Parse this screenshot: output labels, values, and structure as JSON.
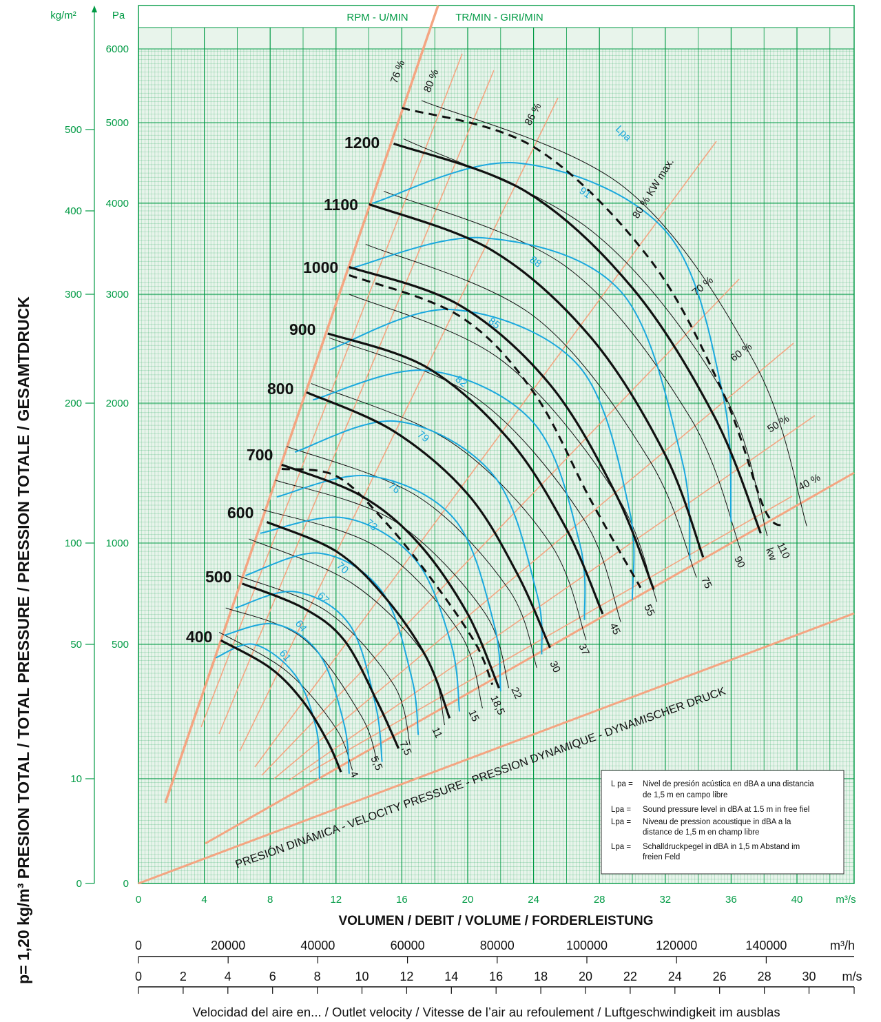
{
  "chart_data": {
    "type": "line",
    "title": "",
    "y_axis_title": "p= 1,20 kg/m³ PRESION TOTAL / TOTAL PRESSURE / PRESSION TOTALE / GESAMTDRUCK",
    "x_axis_title": "VOLUMEN / DEBIT / VOLUME / FORDERLEISTUNG",
    "velocity_axis_title": "Velocidad del aire en... / Outlet velocity / Vitesse de l’air au refoulement / Luftgeschwindigkeit im ausblas",
    "top_labels": [
      "RPM - U/MIN",
      "TR/MIN - GIRI/MIN"
    ],
    "unit_labels": {
      "kgm2": "kg/m²",
      "pa": "Pa",
      "m3s": "m³/s",
      "m3h": "m³/h",
      "ms": "m/s",
      "kw": "kw",
      "lpa": "Lpa"
    },
    "x_ticks_m3s": [
      "0",
      "4",
      "8",
      "12",
      "16",
      "20",
      "24",
      "28",
      "32",
      "36",
      "40"
    ],
    "x_range_m3s": [
      0,
      43.5
    ],
    "y_ticks_pa": [
      "0",
      "500",
      "1000",
      "2000",
      "3000",
      "4000",
      "5000",
      "6000"
    ],
    "y_ticks_kgm2": [
      "0",
      "10",
      "50",
      "100",
      "200",
      "300",
      "400",
      "500"
    ],
    "m3h_ticks": [
      "0",
      "20000",
      "40000",
      "60000",
      "80000",
      "100000",
      "120000",
      "140000"
    ],
    "ms_ticks": [
      "0",
      "2",
      "4",
      "6",
      "8",
      "10",
      "12",
      "14",
      "16",
      "18",
      "20",
      "22",
      "24",
      "26",
      "28",
      "30"
    ],
    "rpm_curves": [
      {
        "rpm": "400",
        "points": [
          [
            5.0,
            520
          ],
          [
            8.0,
            430
          ],
          [
            10.0,
            330
          ],
          [
            11.5,
            210
          ],
          [
            12.3,
            120
          ]
        ]
      },
      {
        "rpm": "500",
        "points": [
          [
            6.3,
            800
          ],
          [
            10.0,
            680
          ],
          [
            12.5,
            520
          ],
          [
            14.5,
            330
          ],
          [
            15.8,
            190
          ]
        ]
      },
      {
        "rpm": "600",
        "points": [
          [
            7.8,
            1150
          ],
          [
            12.0,
            960
          ],
          [
            15.0,
            730
          ],
          [
            17.5,
            460
          ],
          [
            18.9,
            280
          ]
        ]
      },
      {
        "rpm": "700",
        "points": [
          [
            8.7,
            1560
          ],
          [
            13.5,
            1340
          ],
          [
            17.0,
            1000
          ],
          [
            20.0,
            650
          ],
          [
            21.9,
            370
          ]
        ]
      },
      {
        "rpm": "800",
        "points": [
          [
            10.2,
            2100
          ],
          [
            15.5,
            1800
          ],
          [
            20.0,
            1350
          ],
          [
            23.0,
            850
          ],
          [
            25.0,
            490
          ]
        ]
      },
      {
        "rpm": "900",
        "points": [
          [
            11.5,
            2640
          ],
          [
            17.5,
            2330
          ],
          [
            22.5,
            1740
          ],
          [
            26.0,
            1100
          ],
          [
            28.2,
            650
          ]
        ]
      },
      {
        "rpm": "1000",
        "points": [
          [
            12.8,
            3300
          ],
          [
            19.5,
            2900
          ],
          [
            25.0,
            2170
          ],
          [
            29.0,
            1350
          ],
          [
            31.3,
            770
          ]
        ]
      },
      {
        "rpm": "1100",
        "points": [
          [
            14.0,
            3990
          ],
          [
            21.5,
            3480
          ],
          [
            27.5,
            2600
          ],
          [
            32.0,
            1630
          ],
          [
            34.3,
            930
          ]
        ]
      },
      {
        "rpm": "1200",
        "points": [
          [
            15.5,
            4740
          ],
          [
            23.5,
            4150
          ],
          [
            30.0,
            3070
          ],
          [
            35.0,
            1900
          ],
          [
            37.8,
            1070
          ]
        ]
      }
    ],
    "kw_curve_labels": [
      "4",
      "5,5",
      "7,5",
      "11",
      "15",
      "18,5",
      "22",
      "30",
      "37",
      "45",
      "55",
      "75",
      "90",
      "110"
    ],
    "efficiency_lines": [
      "76 %",
      "80 %",
      "86 %",
      "80 % KW max.",
      "70 %",
      "60 %",
      "50 %",
      "40 %"
    ],
    "lpa_curves": [
      {
        "label": "61",
        "points": [
          [
            4.7,
            460
          ],
          [
            7.0,
            500
          ],
          [
            9.5,
            410
          ],
          [
            10.8,
            250
          ],
          [
            11.0,
            100
          ]
        ]
      },
      {
        "label": "64",
        "points": [
          [
            5.2,
            545
          ],
          [
            8.3,
            600
          ],
          [
            11.0,
            470
          ],
          [
            12.5,
            260
          ],
          [
            12.8,
            115
          ]
        ]
      },
      {
        "label": "67",
        "points": [
          [
            5.9,
            680
          ],
          [
            9.5,
            760
          ],
          [
            12.8,
            600
          ],
          [
            14.4,
            320
          ],
          [
            14.8,
            150
          ]
        ]
      },
      {
        "label": "70",
        "points": [
          [
            6.5,
            840
          ],
          [
            11.0,
            950
          ],
          [
            14.8,
            760
          ],
          [
            16.6,
            400
          ],
          [
            17.0,
            230
          ]
        ]
      },
      {
        "label": "73",
        "points": [
          [
            7.4,
            1070
          ],
          [
            12.5,
            1180
          ],
          [
            16.8,
            920
          ],
          [
            19.0,
            500
          ],
          [
            19.5,
            300
          ]
        ]
      },
      {
        "label": "76",
        "points": [
          [
            8.4,
            1330
          ],
          [
            14.0,
            1480
          ],
          [
            19.2,
            1170
          ],
          [
            21.6,
            600
          ],
          [
            22.0,
            360
          ]
        ]
      },
      {
        "label": "79",
        "points": [
          [
            9.5,
            1650
          ],
          [
            15.7,
            1870
          ],
          [
            21.6,
            1480
          ],
          [
            24.2,
            750
          ],
          [
            24.5,
            470
          ]
        ]
      },
      {
        "label": "82",
        "points": [
          [
            10.6,
            2030
          ],
          [
            17.5,
            2300
          ],
          [
            24.0,
            1860
          ],
          [
            26.8,
            1000
          ],
          [
            27.1,
            620
          ]
        ]
      },
      {
        "label": "85",
        "points": [
          [
            11.6,
            2490
          ],
          [
            19.0,
            2860
          ],
          [
            26.7,
            2350
          ],
          [
            29.8,
            1250
          ],
          [
            30.0,
            720
          ]
        ]
      },
      {
        "label": "88",
        "points": [
          [
            12.8,
            3280
          ],
          [
            21.0,
            3620
          ],
          [
            29.3,
            3030
          ],
          [
            33.0,
            1600
          ],
          [
            33.5,
            920
          ]
        ]
      },
      {
        "label": "91",
        "points": [
          [
            14.2,
            4000
          ],
          [
            23.0,
            4500
          ],
          [
            32.0,
            3700
          ],
          [
            35.5,
            2080
          ],
          [
            36.0,
            1150
          ]
        ]
      }
    ],
    "max_kw_dashed": [
      {
        "points": [
          [
            8.7,
            1530
          ],
          [
            12.0,
            1480
          ],
          [
            15.0,
            1150
          ],
          [
            18.0,
            800
          ],
          [
            20.5,
            500
          ],
          [
            21.5,
            380
          ]
        ]
      },
      {
        "points": [
          [
            12.8,
            3210
          ],
          [
            19.5,
            2800
          ],
          [
            24.0,
            2100
          ],
          [
            27.5,
            1300
          ],
          [
            30.5,
            780
          ]
        ]
      },
      {
        "points": [
          [
            16.0,
            5200
          ],
          [
            24.0,
            4700
          ],
          [
            31.0,
            3400
          ],
          [
            35.5,
            2100
          ],
          [
            38.0,
            1250
          ],
          [
            39.2,
            1120
          ]
        ]
      }
    ],
    "dynamic_pressure_label": "PRESIÓN DINÁMICA - VELOCITY PRESSURE - PRESSION DYNAMIQUE - DYNAMISCHER DRUCK",
    "rpm_bold_labels": [
      "400",
      "500",
      "600",
      "700",
      "800",
      "900",
      "1000",
      "1100",
      "1200"
    ],
    "legend": [
      {
        "key": "L pa =",
        "text": "Nivel de presión acústica en dBA a una distancia de 1,5 m en campo libre"
      },
      {
        "key": "Lpa =",
        "text": "Sound pressure level in dBA at  1.5 m in free fiel"
      },
      {
        "key": "Lpa =",
        "text": "Niveau de pression acoustique in dBA a la distance de 1,5 m en champ libre"
      },
      {
        "key": "Lpa =",
        "text": "Schalldruckpegel in dBA in 1,5 m Abstand im freien Feld"
      }
    ],
    "legend_lines": [
      [
        "L pa =",
        "Nivel de presión acústica en dBA a una distancia"
      ],
      [
        "",
        "de 1,5 m en campo libre"
      ],
      [
        "Lpa =",
        "Sound pressure level in dBA at  1.5 m in free fiel"
      ],
      [
        "Lpa =",
        "Niveau de pression acoustique in dBA a la"
      ],
      [
        "",
        "distance de 1,5 m en champ libre"
      ],
      [
        "Lpa =",
        "Schalldruckpegel in dBA in 1,5 m Abstand im"
      ],
      [
        "",
        "freien Feld"
      ]
    ],
    "colors": {
      "grid": "#009a44",
      "blue": "#1aa8de",
      "orange": "#f4a582",
      "black": "#111111"
    }
  }
}
